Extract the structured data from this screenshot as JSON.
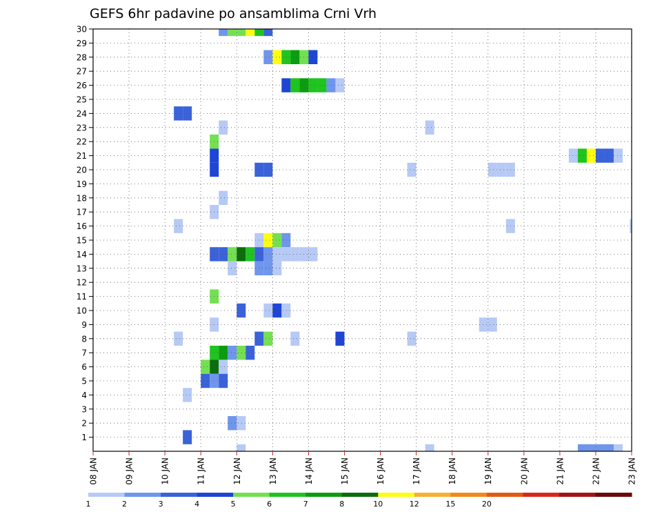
{
  "chart_data": {
    "type": "heatmap",
    "title": "GEFS 6hr padavine po ansamblima Crni Vrh",
    "x_tick_labels": [
      "08 JAN",
      "09 JAN",
      "10 JAN",
      "11 JAN",
      "12 JAN",
      "13 JAN",
      "14 JAN",
      "15 JAN",
      "16 JAN",
      "17 JAN",
      "18 JAN",
      "19 JAN",
      "20 JAN",
      "21 JAN",
      "22 JAN",
      "23 JAN"
    ],
    "y_tick_labels": [
      "1",
      "2",
      "3",
      "4",
      "5",
      "6",
      "7",
      "8",
      "9",
      "10",
      "11",
      "12",
      "13",
      "14",
      "15",
      "16",
      "17",
      "18",
      "19",
      "20",
      "21",
      "22",
      "23",
      "24",
      "25",
      "26",
      "27",
      "28",
      "29",
      "30"
    ],
    "x_range_days": [
      0,
      15
    ],
    "y_range": [
      0,
      30
    ],
    "grid": true,
    "colorbar": {
      "labels": [
        "1",
        "2",
        "3",
        "4",
        "5",
        "6",
        "7",
        "8",
        "10",
        "12",
        "15",
        "20"
      ],
      "colors": [
        "#b7c9f5",
        "#6f96ec",
        "#3a62d9",
        "#1e45d6",
        "#73e052",
        "#1fc41f",
        "#0c9c10",
        "#0b6d0b",
        "#fdfd12",
        "#f6b132",
        "#f08a1a",
        "#e15a12",
        "#d8281c",
        "#a31414",
        "#6c0a0a"
      ]
    },
    "cells": [
      {
        "member": 30,
        "t": [
          3.5,
          3.75,
          4.0,
          4.25,
          4.5,
          4.75,
          5.0
        ],
        "v": [
          2,
          5,
          5,
          9,
          6,
          3,
          null
        ]
      },
      {
        "member": 28,
        "t": [
          4.75,
          5.0,
          5.25,
          5.5,
          5.75,
          6.0
        ],
        "v": [
          2,
          9,
          6,
          7,
          5,
          4
        ]
      },
      {
        "member": 26,
        "t": [
          5.25,
          5.5,
          5.75,
          6.0,
          6.25,
          6.5,
          6.75
        ],
        "v": [
          4,
          6,
          7,
          6,
          6,
          2,
          1
        ]
      },
      {
        "member": 24,
        "t": [
          2.25,
          2.5
        ],
        "v": [
          3,
          3
        ]
      },
      {
        "member": 23,
        "t": [
          3.5,
          9.25
        ],
        "v": [
          1,
          1
        ]
      },
      {
        "member": 22,
        "t": [
          3.25
        ],
        "v": [
          5
        ]
      },
      {
        "member": 21,
        "t": [
          3.25,
          13.25,
          13.5,
          13.75,
          14.0,
          14.25,
          14.5
        ],
        "v": [
          4,
          1,
          6,
          9,
          3,
          3,
          1
        ]
      },
      {
        "member": 20,
        "t": [
          3.25,
          4.5,
          4.75,
          8.75,
          11.0,
          11.25,
          11.5
        ],
        "v": [
          4,
          3,
          3,
          1,
          1,
          1,
          1
        ]
      },
      {
        "member": 18,
        "t": [
          3.5
        ],
        "v": [
          1
        ]
      },
      {
        "member": 17,
        "t": [
          3.25
        ],
        "v": [
          1
        ]
      },
      {
        "member": 16,
        "t": [
          2.25,
          11.5,
          14.95
        ],
        "v": [
          1,
          1,
          1
        ]
      },
      {
        "member": 15,
        "t": [
          4.5,
          4.75,
          5.0,
          5.25
        ],
        "v": [
          1,
          9,
          5,
          2
        ]
      },
      {
        "member": 14,
        "t": [
          3.25,
          3.5,
          3.75,
          4.0,
          4.25,
          4.5,
          4.75,
          5.0,
          5.25,
          5.5,
          5.75,
          6.0
        ],
        "v": [
          3,
          3,
          5,
          8,
          6,
          3,
          2,
          1,
          1,
          1,
          1,
          1
        ]
      },
      {
        "member": 13,
        "t": [
          3.75,
          4.5,
          4.75,
          5.0
        ],
        "v": [
          1,
          2,
          2,
          1
        ]
      },
      {
        "member": 11,
        "t": [
          3.25
        ],
        "v": [
          5
        ]
      },
      {
        "member": 10,
        "t": [
          4.0,
          4.75,
          5.0,
          5.25
        ],
        "v": [
          3,
          1,
          4,
          1
        ]
      },
      {
        "member": 9,
        "t": [
          3.25,
          10.75,
          11.0
        ],
        "v": [
          1,
          1,
          1
        ]
      },
      {
        "member": 8,
        "t": [
          2.25,
          4.5,
          4.75,
          5.5,
          6.75,
          8.75
        ],
        "v": [
          1,
          3,
          5,
          1,
          4,
          1
        ]
      },
      {
        "member": 7,
        "t": [
          3.25,
          3.5,
          3.75,
          4.0,
          4.25
        ],
        "v": [
          6,
          7,
          2,
          5,
          3
        ]
      },
      {
        "member": 6,
        "t": [
          3.0,
          3.25,
          3.5
        ],
        "v": [
          5,
          8,
          1
        ]
      },
      {
        "member": 5,
        "t": [
          3.0,
          3.25,
          3.5
        ],
        "v": [
          3,
          2,
          3
        ]
      },
      {
        "member": 4,
        "t": [
          2.5
        ],
        "v": [
          1
        ]
      },
      {
        "member": 2,
        "t": [
          3.75,
          4.0
        ],
        "v": [
          2,
          1
        ]
      },
      {
        "member": 1,
        "t": [
          2.5
        ],
        "v": [
          3
        ]
      },
      {
        "member": 0,
        "t": [
          4.0,
          9.25,
          13.5,
          13.75,
          14.0,
          14.25,
          14.5
        ],
        "v": [
          1,
          1,
          2,
          2,
          2,
          2,
          1
        ]
      }
    ]
  }
}
